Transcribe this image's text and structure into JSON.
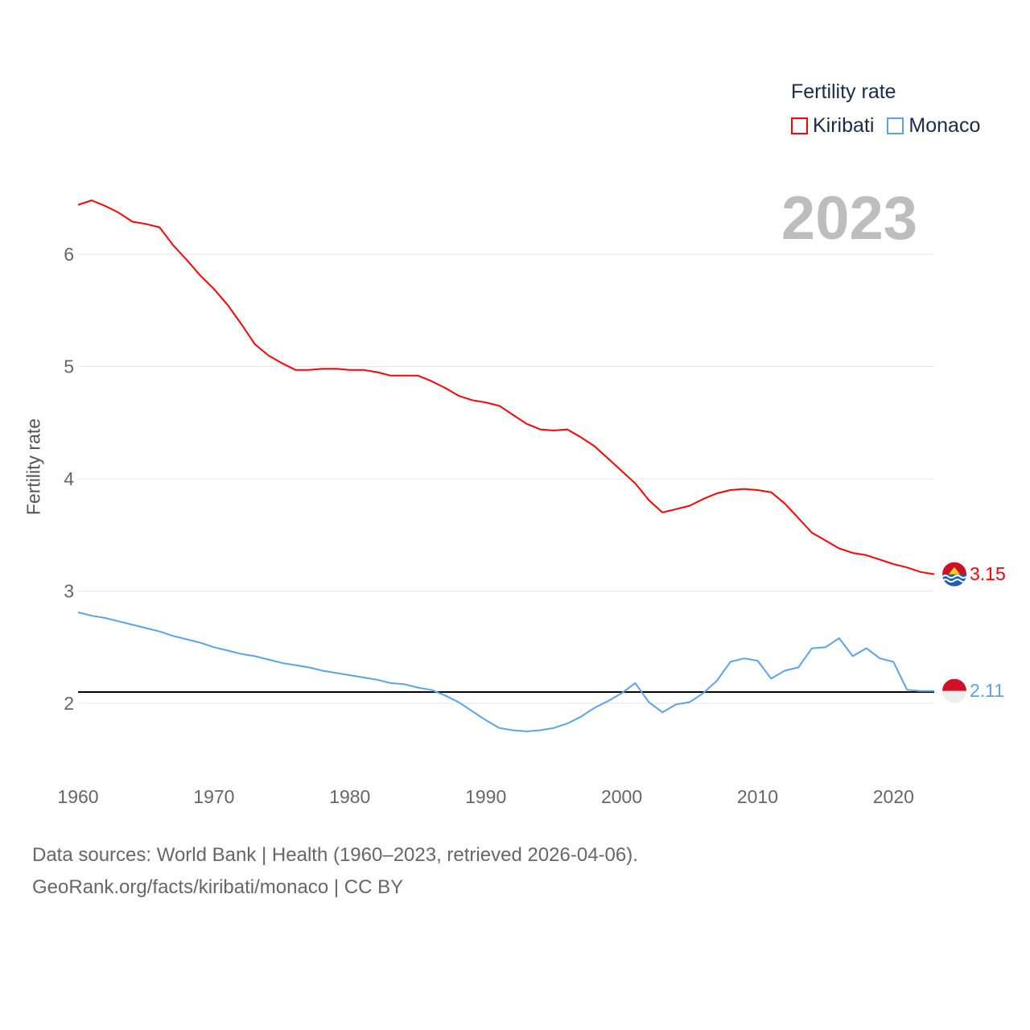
{
  "chart_data": {
    "type": "line",
    "title": "",
    "ylabel": "Fertility rate",
    "xlabel": "",
    "xlim": [
      1960,
      2023
    ],
    "ylim": [
      1.5,
      6.6
    ],
    "grid": true,
    "x_ticks": [
      "1960",
      "1970",
      "1980",
      "1990",
      "2000",
      "2010",
      "2020"
    ],
    "y_ticks": [
      "2",
      "3",
      "4",
      "5",
      "6"
    ],
    "legend": {
      "title": "Fertility rate",
      "placement": "top-right"
    },
    "current_year": "2023",
    "reference_line": {
      "value": 2.1,
      "color": "#000000"
    },
    "x": [
      1960,
      1961,
      1962,
      1963,
      1964,
      1965,
      1966,
      1967,
      1968,
      1969,
      1970,
      1971,
      1972,
      1973,
      1974,
      1975,
      1976,
      1977,
      1978,
      1979,
      1980,
      1981,
      1982,
      1983,
      1984,
      1985,
      1986,
      1987,
      1988,
      1989,
      1990,
      1991,
      1992,
      1993,
      1994,
      1995,
      1996,
      1997,
      1998,
      1999,
      2000,
      2001,
      2002,
      2003,
      2004,
      2005,
      2006,
      2007,
      2008,
      2009,
      2010,
      2011,
      2012,
      2013,
      2014,
      2015,
      2016,
      2017,
      2018,
      2019,
      2020,
      2021,
      2022,
      2023
    ],
    "series": [
      {
        "name": "Kiribati",
        "color": "#ff0000",
        "end_label": "3.15",
        "values": [
          6.44,
          6.48,
          6.43,
          6.37,
          6.29,
          6.27,
          6.24,
          6.08,
          5.95,
          5.81,
          5.69,
          5.55,
          5.38,
          5.2,
          5.1,
          5.03,
          4.97,
          4.97,
          4.98,
          4.98,
          4.97,
          4.97,
          4.95,
          4.92,
          4.92,
          4.92,
          4.87,
          4.81,
          4.74,
          4.7,
          4.68,
          4.65,
          4.57,
          4.49,
          4.44,
          4.43,
          4.44,
          4.37,
          4.29,
          4.18,
          4.07,
          3.96,
          3.81,
          3.7,
          3.73,
          3.76,
          3.82,
          3.87,
          3.9,
          3.91,
          3.9,
          3.88,
          3.78,
          3.65,
          3.52,
          3.45,
          3.38,
          3.34,
          3.32,
          3.28,
          3.24,
          3.21,
          3.17,
          3.15
        ]
      },
      {
        "name": "Monaco",
        "color": "#5ba3e6",
        "end_label": "2.11",
        "values": [
          2.81,
          2.78,
          2.76,
          2.73,
          2.7,
          2.67,
          2.64,
          2.6,
          2.57,
          2.54,
          2.5,
          2.47,
          2.44,
          2.42,
          2.39,
          2.36,
          2.34,
          2.32,
          2.29,
          2.27,
          2.25,
          2.23,
          2.21,
          2.18,
          2.17,
          2.14,
          2.12,
          2.07,
          2.01,
          1.93,
          1.85,
          1.78,
          1.76,
          1.75,
          1.76,
          1.78,
          1.82,
          1.88,
          1.96,
          2.02,
          2.09,
          2.18,
          2.01,
          1.92,
          1.99,
          2.01,
          2.09,
          2.2,
          2.37,
          2.4,
          2.38,
          2.22,
          2.29,
          2.32,
          2.49,
          2.5,
          2.58,
          2.42,
          2.49,
          2.4,
          2.37,
          2.12,
          2.11,
          2.11
        ]
      }
    ]
  },
  "footer": {
    "line1": "Data sources: World Bank | Health (1960–2023, retrieved 2026-04-06).",
    "line2": "GeoRank.org/facts/kiribati/monaco | CC BY"
  }
}
